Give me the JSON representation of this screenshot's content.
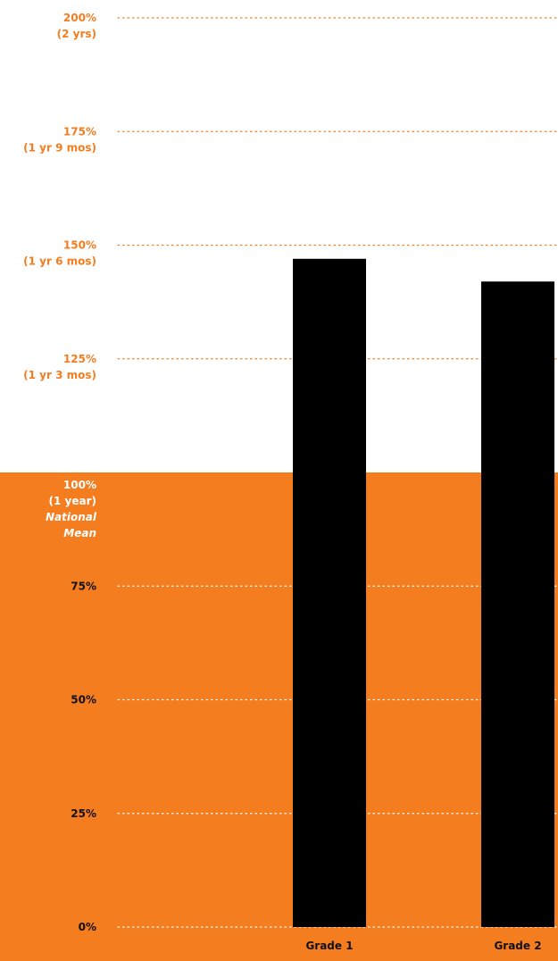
{
  "chart_data": {
    "type": "bar",
    "categories": [
      "Grade 1",
      "Grade 2"
    ],
    "values": [
      147,
      142
    ],
    "ylim": [
      0,
      200
    ],
    "grid": true,
    "y_ticks": [
      {
        "value": 200,
        "lines": [
          "200%",
          "(2 yrs)"
        ]
      },
      {
        "value": 175,
        "lines": [
          "175%",
          "(1 yr 9 mos)"
        ]
      },
      {
        "value": 150,
        "lines": [
          "150%",
          "(1 yr 6 mos)"
        ]
      },
      {
        "value": 125,
        "lines": [
          "125%",
          "(1 yr 3 mos)"
        ]
      },
      {
        "value": 100,
        "lines": [
          "100%",
          "(1 year)",
          "National",
          "Mean"
        ]
      },
      {
        "value": 75,
        "lines": [
          "75%"
        ]
      },
      {
        "value": 50,
        "lines": [
          "50%"
        ]
      },
      {
        "value": 25,
        "lines": [
          "25%"
        ]
      },
      {
        "value": 0,
        "lines": [
          "0%"
        ]
      }
    ],
    "reference_band": {
      "from": 0,
      "to": 100
    },
    "colors": {
      "accent": "#f47d20",
      "bar": "#000000",
      "dark_text": "#111111",
      "light_text": "#ffffff"
    }
  }
}
